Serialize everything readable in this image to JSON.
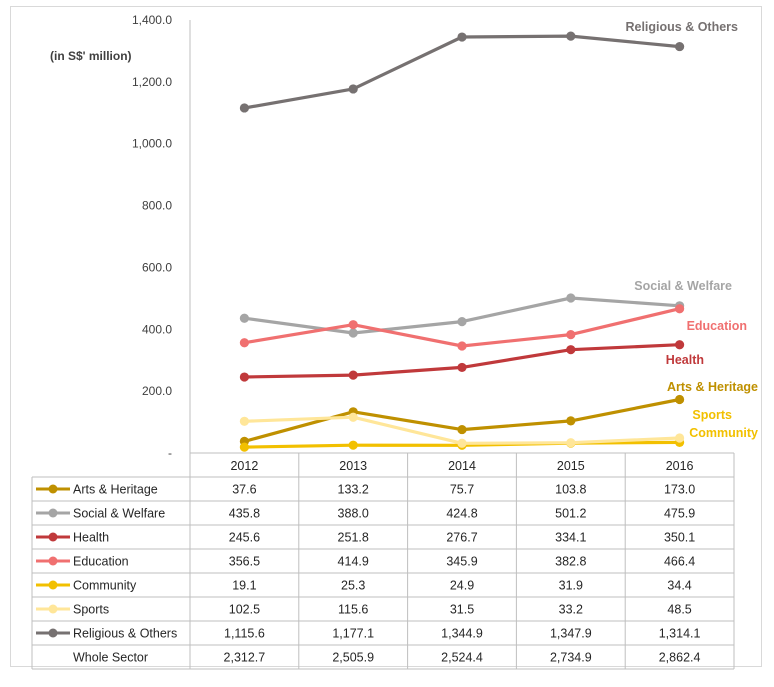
{
  "chart_data": {
    "type": "line",
    "unit_label": "(in S$' million)",
    "categories": [
      "2012",
      "2013",
      "2014",
      "2015",
      "2016"
    ],
    "ylim": [
      0,
      1400
    ],
    "yticks": [
      {
        "v": 0,
        "label": "-"
      },
      {
        "v": 200,
        "label": "200.0"
      },
      {
        "v": 400,
        "label": "400.0"
      },
      {
        "v": 600,
        "label": "600.0"
      },
      {
        "v": 800,
        "label": "800.0"
      },
      {
        "v": 1000,
        "label": "1,000.0"
      },
      {
        "v": 1200,
        "label": "1,200.0"
      },
      {
        "v": 1400,
        "label": "1,400.0"
      }
    ],
    "grid": false,
    "series": [
      {
        "name": "Arts & Heritage",
        "color": "#bf9000",
        "values": [
          37.6,
          133.2,
          75.7,
          103.8,
          173.0
        ],
        "display": [
          "37.6",
          "133.2",
          "75.7",
          "103.8",
          "173.0"
        ]
      },
      {
        "name": "Social & Welfare",
        "color": "#a5a5a5",
        "values": [
          435.8,
          388.0,
          424.8,
          501.2,
          475.9
        ],
        "display": [
          "435.8",
          "388.0",
          "424.8",
          "501.2",
          "475.9"
        ]
      },
      {
        "name": "Health",
        "color": "#c0393b",
        "values": [
          245.6,
          251.8,
          276.7,
          334.1,
          350.1
        ],
        "display": [
          "245.6",
          "251.8",
          "276.7",
          "334.1",
          "350.1"
        ]
      },
      {
        "name": "Education",
        "color": "#f07070",
        "values": [
          356.5,
          414.9,
          345.9,
          382.8,
          466.4
        ],
        "display": [
          "356.5",
          "414.9",
          "345.9",
          "382.8",
          "466.4"
        ]
      },
      {
        "name": "Community",
        "color": "#f2c000",
        "values": [
          19.1,
          25.3,
          24.9,
          31.9,
          34.4
        ],
        "display": [
          "19.1",
          "25.3",
          "24.9",
          "31.9",
          "34.4"
        ]
      },
      {
        "name": "Sports",
        "color": "#ffe699",
        "values": [
          102.5,
          115.6,
          31.5,
          33.2,
          48.5
        ],
        "display": [
          "102.5",
          "115.6",
          "31.5",
          "33.2",
          "48.5"
        ]
      },
      {
        "name": "Religious & Others",
        "color": "#767171",
        "values": [
          1115.6,
          1177.1,
          1344.9,
          1347.9,
          1314.1
        ],
        "display": [
          "1,115.6",
          "1,177.1",
          "1,344.9",
          "1,347.9",
          "1,314.1"
        ]
      }
    ],
    "line_labels": [
      {
        "text": "Religious & Others",
        "color": "#767171"
      },
      {
        "text": "Social & Welfare",
        "color": "#a5a5a5"
      },
      {
        "text": "Education",
        "color": "#f07070"
      },
      {
        "text": "Health",
        "color": "#c0393b"
      },
      {
        "text": "Arts & Heritage",
        "color": "#bf9000"
      },
      {
        "text": "Sports",
        "color": "#f2c000"
      },
      {
        "text": "Community",
        "color": "#f2c000"
      }
    ],
    "total_row": {
      "name": "Whole Sector",
      "values": [
        "2,312.7",
        "2,505.9",
        "2,524.4",
        "2,734.9",
        "2,862.4"
      ]
    }
  }
}
